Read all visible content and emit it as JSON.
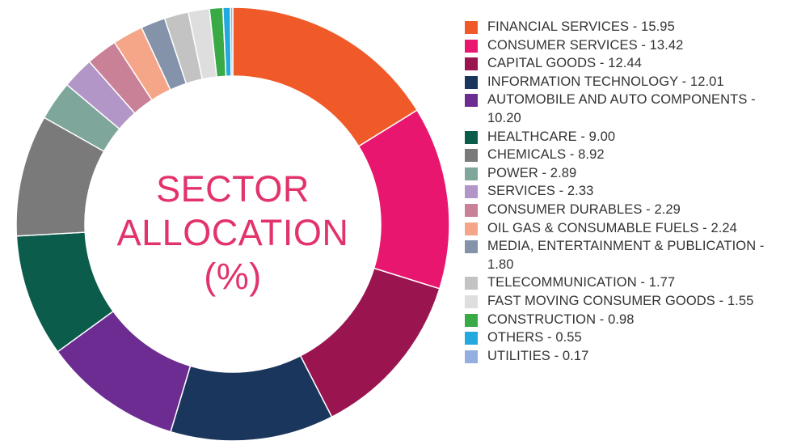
{
  "chart_data": {
    "type": "pie",
    "center_label": [
      "SECTOR",
      "ALLOCATION",
      "(%)"
    ],
    "slices": [
      {
        "label": "FINANCIAL SERVICES - 15.95",
        "value": 15.95,
        "color": "#f05a28"
      },
      {
        "label": "CONSUMER SERVICES - 13.42",
        "value": 13.42,
        "color": "#e8166f"
      },
      {
        "label": "CAPITAL GOODS - 12.44",
        "value": 12.44,
        "color": "#9a1450"
      },
      {
        "label": "INFORMATION TECHNOLOGY - 12.01",
        "value": 12.01,
        "color": "#1b365d"
      },
      {
        "label": "AUTOMOBILE AND AUTO COMPONENTS - 10.20",
        "value": 10.2,
        "color": "#6c2c91"
      },
      {
        "label": "HEALTHCARE - 9.00",
        "value": 9.0,
        "color": "#0b5c4b"
      },
      {
        "label": "CHEMICALS - 8.92",
        "value": 8.92,
        "color": "#7a7a7a"
      },
      {
        "label": "POWER - 2.89",
        "value": 2.89,
        "color": "#7ea69a"
      },
      {
        "label": "SERVICES - 2.33",
        "value": 2.33,
        "color": "#b296c7"
      },
      {
        "label": "CONSUMER DURABLES - 2.29",
        "value": 2.29,
        "color": "#c88196"
      },
      {
        "label": "OIL GAS & CONSUMABLE FUELS - 2.24",
        "value": 2.24,
        "color": "#f5a689"
      },
      {
        "label": "MEDIA, ENTERTAINMENT & PUBLICATION - 1.80",
        "value": 1.8,
        "color": "#8593aa"
      },
      {
        "label": "TELECOMMUNICATION - 1.77",
        "value": 1.77,
        "color": "#c3c3c3"
      },
      {
        "label": "FAST MOVING CONSUMER GOODS - 1.55",
        "value": 1.55,
        "color": "#dedede"
      },
      {
        "label": "CONSTRUCTION - 0.98",
        "value": 0.98,
        "color": "#3aaa47"
      },
      {
        "label": "OTHERS - 0.55",
        "value": 0.55,
        "color": "#23a8e0"
      },
      {
        "label": "UTILITIES - 0.17",
        "value": 0.17,
        "color": "#93aee0"
      }
    ],
    "legend_position": "right"
  }
}
